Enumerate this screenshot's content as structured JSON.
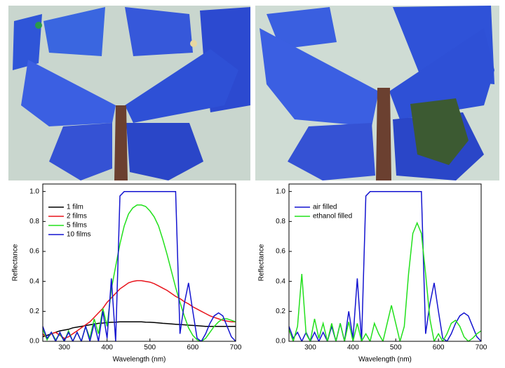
{
  "chart_data": [
    {
      "type": "line",
      "xlabel": "Wavelength (nm)",
      "ylabel": "Reflectance",
      "legend": "upper left",
      "xlim": [
        250,
        700
      ],
      "ylim": [
        0,
        1.05
      ],
      "xticks": [
        300,
        400,
        500,
        600,
        700
      ],
      "yticks": [
        {
          "value": 0,
          "label": "0.0"
        },
        0.2,
        0.4,
        0.6,
        0.8,
        {
          "value": 1,
          "label": "1.0"
        }
      ],
      "x": [
        250,
        260,
        270,
        280,
        290,
        300,
        310,
        320,
        330,
        340,
        350,
        360,
        370,
        380,
        390,
        400,
        410,
        420,
        430,
        440,
        450,
        460,
        470,
        480,
        490,
        500,
        510,
        520,
        530,
        540,
        550,
        560,
        570,
        580,
        590,
        600,
        610,
        620,
        630,
        640,
        650,
        660,
        670,
        680,
        690,
        700
      ],
      "series": [
        {
          "name": "1 film",
          "color": "#000000",
          "values": [
            0.03,
            0.04,
            0.05,
            0.06,
            0.07,
            0.075,
            0.08,
            0.09,
            0.095,
            0.1,
            0.105,
            0.11,
            0.115,
            0.12,
            0.122,
            0.125,
            0.127,
            0.128,
            0.13,
            0.13,
            0.13,
            0.13,
            0.13,
            0.13,
            0.128,
            0.127,
            0.125,
            0.123,
            0.12,
            0.118,
            0.116,
            0.114,
            0.112,
            0.11,
            0.108,
            0.106,
            0.104,
            0.102,
            0.1,
            0.1,
            0.1,
            0.1,
            0.1,
            0.1,
            0.1,
            0.1
          ]
        },
        {
          "name": "2 films",
          "color": "#e8141c",
          "values": [
            0.05,
            0.02,
            0.05,
            0.06,
            0.04,
            0.02,
            0.03,
            0.05,
            0.07,
            0.09,
            0.11,
            0.13,
            0.16,
            0.19,
            0.22,
            0.26,
            0.29,
            0.32,
            0.35,
            0.37,
            0.39,
            0.4,
            0.405,
            0.405,
            0.4,
            0.395,
            0.385,
            0.37,
            0.355,
            0.34,
            0.32,
            0.3,
            0.285,
            0.265,
            0.25,
            0.23,
            0.215,
            0.2,
            0.185,
            0.17,
            0.16,
            0.15,
            0.14,
            0.135,
            0.13,
            0.13
          ]
        },
        {
          "name": "5 films",
          "color": "#22e01c",
          "values": [
            0.08,
            0.01,
            0.06,
            0.01,
            0.05,
            0,
            0.07,
            0,
            0.06,
            0,
            0.1,
            0.02,
            0.15,
            0.05,
            0.22,
            0.1,
            0.35,
            0.5,
            0.65,
            0.77,
            0.85,
            0.89,
            0.91,
            0.91,
            0.9,
            0.87,
            0.83,
            0.77,
            0.68,
            0.58,
            0.47,
            0.36,
            0.26,
            0.17,
            0.09,
            0.04,
            0.01,
            0,
            0.02,
            0.06,
            0.1,
            0.13,
            0.15,
            0.15,
            0.14,
            0.13
          ]
        },
        {
          "name": "10 films",
          "color": "#1414d0",
          "values": [
            0.1,
            0.02,
            0.06,
            0,
            0.06,
            0,
            0.06,
            0,
            0.06,
            0,
            0.1,
            0,
            0.12,
            0,
            0.2,
            0.02,
            0.42,
            0,
            0.97,
            1,
            1,
            1,
            1,
            1,
            1,
            1,
            1,
            1,
            1,
            1,
            1,
            1,
            0.05,
            0.25,
            0.39,
            0.2,
            0.02,
            0,
            0.05,
            0.12,
            0.17,
            0.19,
            0.17,
            0.1,
            0.03,
            0
          ]
        }
      ]
    },
    {
      "type": "line",
      "xlabel": "Wavelength (nm)",
      "ylabel": "Reflectance",
      "legend": "upper left",
      "xlim": [
        250,
        700
      ],
      "ylim": [
        0,
        1.05
      ],
      "xticks": [
        300,
        400,
        500,
        600,
        700
      ],
      "yticks": [
        {
          "value": 0,
          "label": "0.0"
        },
        0.2,
        0.4,
        0.6,
        0.8,
        {
          "value": 1,
          "label": "1.0"
        }
      ],
      "x": [
        250,
        260,
        270,
        280,
        290,
        300,
        310,
        320,
        330,
        340,
        350,
        360,
        370,
        380,
        390,
        400,
        410,
        420,
        430,
        440,
        450,
        460,
        470,
        480,
        490,
        500,
        510,
        520,
        530,
        540,
        550,
        560,
        570,
        580,
        590,
        600,
        610,
        620,
        630,
        640,
        650,
        660,
        670,
        680,
        690,
        700
      ],
      "series": [
        {
          "name": "air filled",
          "color": "#1414d0",
          "values": [
            0.1,
            0.02,
            0.06,
            0,
            0.06,
            0,
            0.06,
            0,
            0.06,
            0,
            0.1,
            0,
            0.12,
            0,
            0.2,
            0.02,
            0.42,
            0,
            0.97,
            1,
            1,
            1,
            1,
            1,
            1,
            1,
            1,
            1,
            1,
            1,
            1,
            1,
            0.05,
            0.25,
            0.39,
            0.2,
            0.02,
            0,
            0.05,
            0.12,
            0.17,
            0.19,
            0.17,
            0.1,
            0.03,
            0
          ]
        },
        {
          "name": "ethanol filled",
          "color": "#22e01c",
          "values": [
            0.08,
            0,
            0.1,
            0.45,
            0.05,
            0,
            0.15,
            0.02,
            0.12,
            0,
            0.12,
            0,
            0.12,
            0,
            0.13,
            0,
            0.12,
            0,
            0.05,
            0,
            0.12,
            0.05,
            0,
            0.12,
            0.24,
            0.12,
            0,
            0.1,
            0.45,
            0.72,
            0.79,
            0.72,
            0.45,
            0.15,
            0,
            0.05,
            0,
            0.05,
            0.12,
            0.14,
            0.1,
            0.03,
            0,
            0.02,
            0.05,
            0.07
          ]
        }
      ]
    }
  ]
}
